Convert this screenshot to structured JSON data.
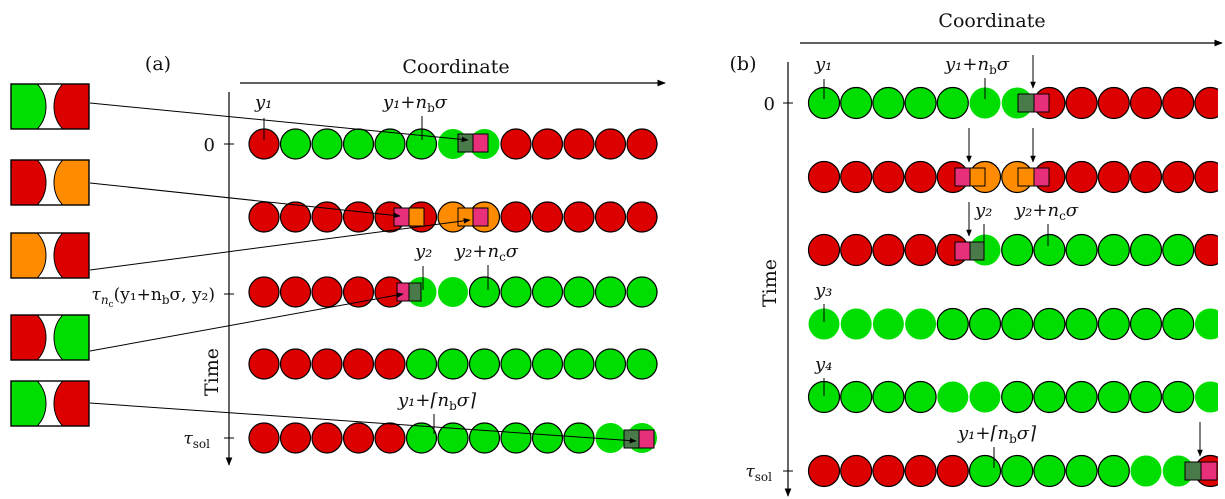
{
  "colors": {
    "red": "#dd0000",
    "green": "#00dd00",
    "orange": "#ff8c00",
    "box_green": "#4a7a4a",
    "box_pink": "#e8307a",
    "stroke": "#000000"
  },
  "panel_a": {
    "label": "(a)",
    "axis_x": "Coordinate",
    "axis_y": "Time",
    "ticks": {
      "t0": "0",
      "tau_nc": "τ",
      "tau_nc_sub": "n",
      "tau_nc_subsub": "c",
      "tau_nc_args": "(y₁+n",
      "tau_nc_args_sub": "b",
      "tau_nc_args_tail": "σ, y₂)",
      "tau_sol": "τ",
      "tau_sol_sub": "sol"
    },
    "annotations": {
      "y1": "y₁",
      "y1_nb_sigma": "y₁+n",
      "y1_nb_sigma_sub": "b",
      "y1_nb_sigma_tail": "σ",
      "y2": "y₂",
      "y2_nc_sigma": "y₂+n",
      "y2_nc_sigma_sub": "c",
      "y2_nc_sigma_tail": "σ",
      "y1_ceil": "y₁+⌈n",
      "y1_ceil_sub": "b",
      "y1_ceil_tail": "σ⌉"
    },
    "rows": [
      [
        "R",
        "G",
        "G",
        "G",
        "G",
        "G",
        "g",
        "g",
        "R",
        "R",
        "R",
        "R",
        "R",
        "R"
      ],
      [
        "R",
        "R",
        "R",
        "R",
        "R",
        "R",
        "O",
        "O",
        "R",
        "R",
        "R",
        "R",
        "R",
        "R"
      ],
      [
        "R",
        "R",
        "R",
        "R",
        "R",
        "g",
        "g",
        "G",
        "G",
        "G",
        "G",
        "G",
        "G",
        "R"
      ],
      [
        "R",
        "R",
        "R",
        "R",
        "R",
        "G",
        "G",
        "G",
        "G",
        "G",
        "G",
        "G",
        "G",
        "R"
      ],
      [
        "R",
        "R",
        "R",
        "R",
        "R",
        "G",
        "G",
        "G",
        "G",
        "G",
        "G",
        "g",
        "g",
        "R"
      ]
    ],
    "legend": [
      [
        "G",
        "R"
      ],
      [
        "R",
        "O"
      ],
      [
        "O",
        "R"
      ],
      [
        "R",
        "G"
      ],
      [
        "G",
        "R"
      ]
    ]
  },
  "panel_b": {
    "label": "(b)",
    "axis_x": "Coordinate",
    "axis_y": "Time",
    "ticks": {
      "t0": "0",
      "tau_sol": "τ",
      "tau_sol_sub": "sol"
    },
    "annotations": {
      "y1": "y₁",
      "y1_nb_sigma": "y₁+n",
      "y1_nb_sigma_sub": "b",
      "y1_nb_sigma_tail": "σ",
      "y2": "y₂",
      "y2_nc_sigma": "y₂+n",
      "y2_nc_sigma_sub": "c",
      "y2_nc_sigma_tail": "σ",
      "y3": "y₃",
      "y4": "y₄",
      "y1_ceil": "y₁+⌈n",
      "y1_ceil_sub": "b",
      "y1_ceil_tail": "σ⌉"
    },
    "rows": [
      [
        "G",
        "G",
        "G",
        "G",
        "G",
        "g",
        "g",
        "R",
        "R",
        "R",
        "R",
        "R",
        "R"
      ],
      [
        "R",
        "R",
        "R",
        "R",
        "R",
        "O",
        "O",
        "R",
        "R",
        "R",
        "R",
        "R",
        "R"
      ],
      [
        "R",
        "R",
        "R",
        "R",
        "R",
        "g",
        "G",
        "G",
        "G",
        "G",
        "G",
        "G",
        "R"
      ],
      [
        "g",
        "g",
        "g",
        "g",
        "G",
        "G",
        "G",
        "G",
        "G",
        "G",
        "G",
        "G",
        "g"
      ],
      [
        "G",
        "G",
        "G",
        "G",
        "g",
        "g",
        "G",
        "G",
        "G",
        "G",
        "G",
        "G",
        "g"
      ],
      [
        "R",
        "R",
        "R",
        "R",
        "R",
        "G",
        "G",
        "G",
        "G",
        "G",
        "g",
        "g",
        "R"
      ]
    ]
  }
}
